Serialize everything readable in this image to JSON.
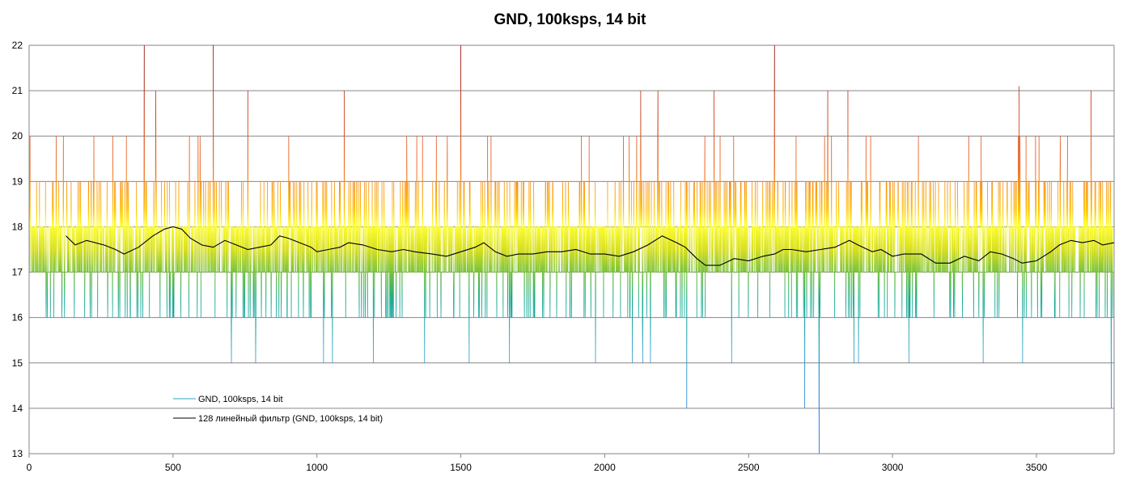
{
  "chart_data": {
    "type": "line",
    "title": "GND, 100ksps, 14 bit",
    "xlim": [
      0,
      3770
    ],
    "ylim": [
      13,
      22
    ],
    "x_ticks": [
      0,
      500,
      1000,
      1500,
      2000,
      2500,
      3000,
      3500
    ],
    "y_ticks": [
      13,
      14,
      15,
      16,
      17,
      18,
      19,
      20,
      21,
      22
    ],
    "grid": "horizontal",
    "legend": "bottom-left",
    "series": [
      {
        "name": "GND, 100ksps, 14 bit",
        "style": "vertical gradient: blue-green below 17, yellow 17-18, orange-red above 18",
        "n_points": 3770,
        "typical_range": [
          16,
          19
        ],
        "spikes": [
          {
            "x": 400,
            "y": 22
          },
          {
            "x": 640,
            "y": 22
          },
          {
            "x": 1500,
            "y": 22
          },
          {
            "x": 2590,
            "y": 22
          },
          {
            "x": 440,
            "y": 21
          },
          {
            "x": 760,
            "y": 21
          },
          {
            "x": 1095,
            "y": 21
          },
          {
            "x": 2125,
            "y": 21
          },
          {
            "x": 2185,
            "y": 21
          },
          {
            "x": 2380,
            "y": 21
          },
          {
            "x": 2775,
            "y": 21
          },
          {
            "x": 2845,
            "y": 21
          },
          {
            "x": 3440,
            "y": 21.1
          },
          {
            "x": 3690,
            "y": 21
          },
          {
            "x": 2285,
            "y": 14
          },
          {
            "x": 2695,
            "y": 14
          },
          {
            "x": 2745,
            "y": 13
          },
          {
            "x": 3760,
            "y": 14
          }
        ]
      },
      {
        "name": "128 линейный фильтр (GND, 100ksps, 14 bit)",
        "color": "#000000",
        "points": [
          [
            128,
            17.8
          ],
          [
            160,
            17.6
          ],
          [
            200,
            17.7
          ],
          [
            260,
            17.6
          ],
          [
            300,
            17.5
          ],
          [
            330,
            17.4
          ],
          [
            380,
            17.55
          ],
          [
            430,
            17.8
          ],
          [
            470,
            17.95
          ],
          [
            500,
            18.0
          ],
          [
            530,
            17.95
          ],
          [
            560,
            17.75
          ],
          [
            600,
            17.6
          ],
          [
            640,
            17.55
          ],
          [
            680,
            17.7
          ],
          [
            720,
            17.6
          ],
          [
            760,
            17.5
          ],
          [
            800,
            17.55
          ],
          [
            840,
            17.6
          ],
          [
            870,
            17.8
          ],
          [
            900,
            17.75
          ],
          [
            940,
            17.65
          ],
          [
            980,
            17.55
          ],
          [
            1000,
            17.45
          ],
          [
            1040,
            17.5
          ],
          [
            1080,
            17.55
          ],
          [
            1110,
            17.65
          ],
          [
            1160,
            17.6
          ],
          [
            1210,
            17.5
          ],
          [
            1260,
            17.45
          ],
          [
            1300,
            17.5
          ],
          [
            1340,
            17.45
          ],
          [
            1400,
            17.4
          ],
          [
            1450,
            17.35
          ],
          [
            1500,
            17.45
          ],
          [
            1550,
            17.55
          ],
          [
            1580,
            17.65
          ],
          [
            1620,
            17.45
          ],
          [
            1660,
            17.35
          ],
          [
            1700,
            17.4
          ],
          [
            1750,
            17.4
          ],
          [
            1800,
            17.45
          ],
          [
            1850,
            17.45
          ],
          [
            1900,
            17.5
          ],
          [
            1950,
            17.4
          ],
          [
            2000,
            17.4
          ],
          [
            2050,
            17.35
          ],
          [
            2100,
            17.45
          ],
          [
            2150,
            17.6
          ],
          [
            2200,
            17.8
          ],
          [
            2250,
            17.65
          ],
          [
            2280,
            17.55
          ],
          [
            2320,
            17.3
          ],
          [
            2350,
            17.15
          ],
          [
            2400,
            17.15
          ],
          [
            2450,
            17.3
          ],
          [
            2500,
            17.25
          ],
          [
            2550,
            17.35
          ],
          [
            2590,
            17.4
          ],
          [
            2620,
            17.5
          ],
          [
            2650,
            17.5
          ],
          [
            2700,
            17.45
          ],
          [
            2750,
            17.5
          ],
          [
            2800,
            17.55
          ],
          [
            2850,
            17.7
          ],
          [
            2880,
            17.6
          ],
          [
            2930,
            17.45
          ],
          [
            2960,
            17.5
          ],
          [
            3000,
            17.35
          ],
          [
            3040,
            17.4
          ],
          [
            3100,
            17.4
          ],
          [
            3150,
            17.2
          ],
          [
            3200,
            17.2
          ],
          [
            3250,
            17.35
          ],
          [
            3300,
            17.25
          ],
          [
            3340,
            17.45
          ],
          [
            3380,
            17.4
          ],
          [
            3420,
            17.3
          ],
          [
            3450,
            17.2
          ],
          [
            3500,
            17.25
          ],
          [
            3550,
            17.45
          ],
          [
            3580,
            17.6
          ],
          [
            3620,
            17.7
          ],
          [
            3660,
            17.65
          ],
          [
            3700,
            17.7
          ],
          [
            3730,
            17.6
          ],
          [
            3770,
            17.65
          ]
        ]
      }
    ]
  }
}
